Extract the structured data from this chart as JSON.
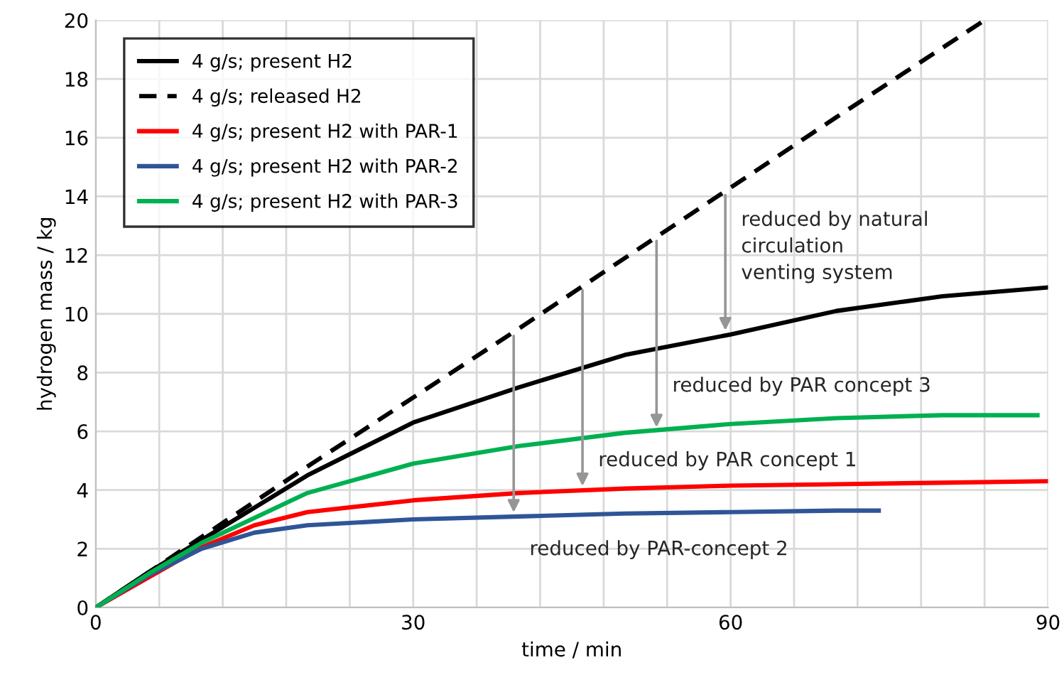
{
  "chart_data": {
    "type": "line",
    "xlabel": "time / min",
    "ylabel": "hydrogen mass / kg",
    "xlim": [
      0,
      90
    ],
    "ylim": [
      0,
      20
    ],
    "xticks": [
      0,
      {
        "value": 6,
        "label": null
      },
      {
        "value": 12,
        "label": null
      },
      {
        "value": 18,
        "label": null
      },
      {
        "value": 24,
        "label": null
      },
      30,
      {
        "value": 36,
        "label": null
      },
      {
        "value": 42,
        "label": null
      },
      {
        "value": 48,
        "label": null
      },
      {
        "value": 54,
        "label": null
      },
      60,
      {
        "value": 66,
        "label": null
      },
      {
        "value": 72,
        "label": null
      },
      {
        "value": 78,
        "label": null
      },
      {
        "value": 84,
        "label": null
      },
      90
    ],
    "yticks": [
      0,
      2,
      4,
      6,
      8,
      10,
      12,
      14,
      16,
      18,
      20
    ],
    "grid": true,
    "legend": "top left",
    "marker": "none",
    "series": [
      {
        "name": "4 g/s; present H2",
        "color": "#000000",
        "line_style": "solid",
        "x": [
          0,
          5,
          10,
          20,
          30,
          40,
          50,
          60,
          70,
          80,
          90
        ],
        "values": [
          0,
          1.2,
          2.3,
          4.5,
          6.3,
          7.5,
          8.6,
          9.3,
          10.1,
          10.6,
          10.9
        ]
      },
      {
        "name": "4 g/s; released H2",
        "color": "#000000",
        "line_style": "dashed",
        "x": [
          0,
          10,
          20,
          30,
          40,
          50,
          60,
          70,
          84
        ],
        "values": [
          0,
          2.4,
          4.8,
          7.15,
          9.5,
          11.9,
          14.3,
          16.7,
          20
        ]
      },
      {
        "name": "4 g/s; present H2 with PAR-1",
        "color": "#ff0000",
        "line_style": "solid",
        "x": [
          0,
          10,
          15,
          20,
          30,
          40,
          50,
          60,
          70,
          80,
          90
        ],
        "values": [
          0,
          2.05,
          2.8,
          3.25,
          3.65,
          3.9,
          4.05,
          4.15,
          4.2,
          4.25,
          4.3
        ]
      },
      {
        "name": "4 g/s; present H2 with PAR-2",
        "color": "#2f5597",
        "line_style": "solid",
        "x": [
          0,
          5,
          10,
          15,
          20,
          30,
          40,
          50,
          60,
          70,
          74
        ],
        "values": [
          0,
          1.1,
          2.0,
          2.55,
          2.8,
          3.0,
          3.1,
          3.2,
          3.25,
          3.3,
          3.3
        ]
      },
      {
        "name": "4 g/s; present H2 with PAR-3",
        "color": "#00b050",
        "line_style": "solid",
        "x": [
          0,
          5,
          10,
          20,
          30,
          40,
          50,
          60,
          70,
          80,
          89
        ],
        "values": [
          0,
          1.15,
          2.2,
          3.9,
          4.9,
          5.5,
          5.95,
          6.25,
          6.45,
          6.55,
          6.55
        ]
      }
    ],
    "annotations": [
      {
        "text": "reduced by PAR-concept 2",
        "x": 39.5,
        "y": 3.1
      },
      {
        "text": "reduced by PAR concept 1",
        "x": 46,
        "y": 4.0
      },
      {
        "text": "reduced by PAR concept 3",
        "x": 53,
        "y": 6.0
      },
      {
        "text": "reduced by natural\ncirculation\nventing system",
        "x": 59.5,
        "y": 9.3
      }
    ]
  }
}
